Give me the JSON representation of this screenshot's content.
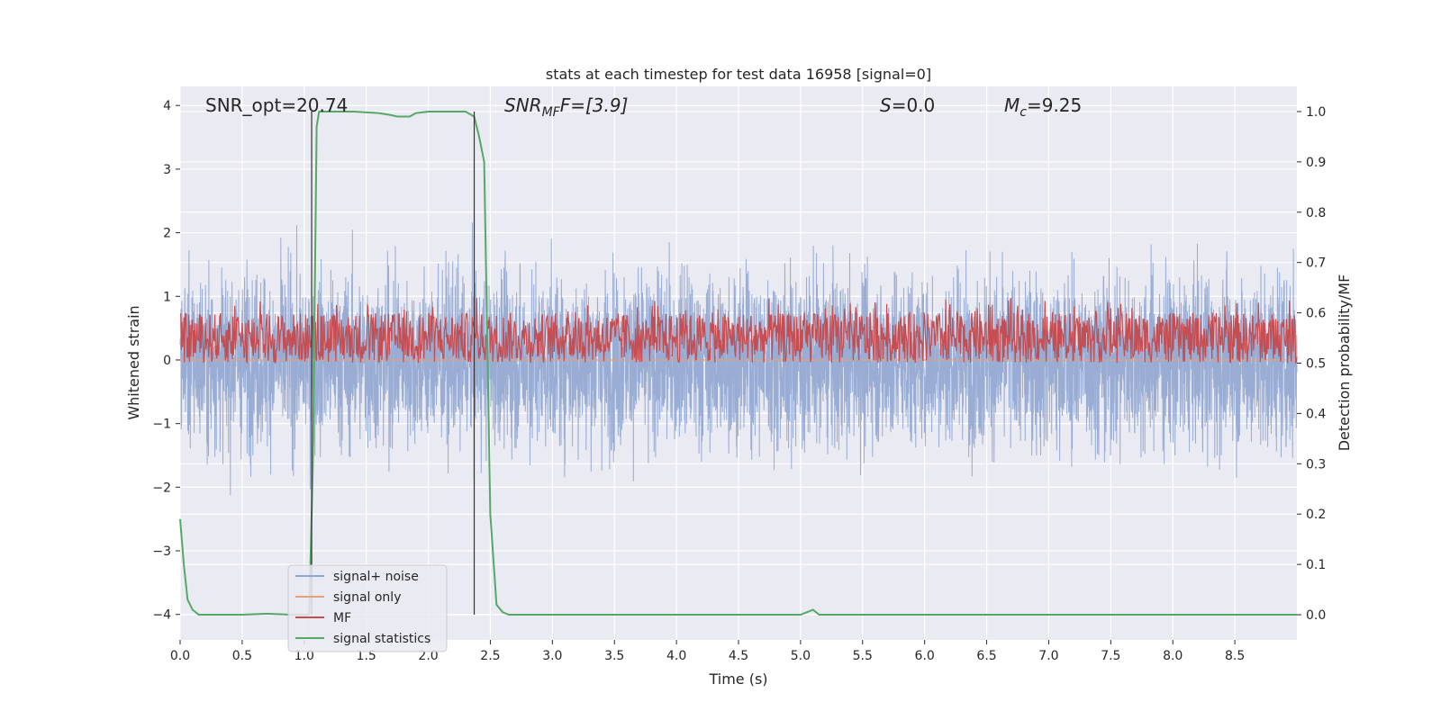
{
  "chart_data": {
    "type": "line",
    "title": "stats at each timestep for test data 16958 [signal=0]",
    "xlabel": "Time (s)",
    "ylabel": "Whitened strain",
    "y2label": "Detection probability/MF",
    "xlim": [
      0,
      9.0
    ],
    "ylim": [
      -4.4,
      4.3
    ],
    "y2lim": [
      -0.05,
      1.05
    ],
    "xticks": [
      0.0,
      0.5,
      1.0,
      1.5,
      2.0,
      2.5,
      3.0,
      3.5,
      4.0,
      4.5,
      5.0,
      5.5,
      6.0,
      6.5,
      7.0,
      7.5,
      8.0,
      8.5
    ],
    "xtick_labels": [
      "0.0",
      "0.5",
      "1.0",
      "1.5",
      "2.0",
      "2.5",
      "3.0",
      "3.5",
      "4.0",
      "4.5",
      "5.0",
      "5.5",
      "6.0",
      "6.5",
      "7.0",
      "7.5",
      "8.0",
      "8.5"
    ],
    "yticks": [
      4,
      3,
      2,
      1,
      0,
      -1,
      -2,
      -3,
      -4
    ],
    "ytick_labels": [
      "4",
      "3",
      "2",
      "1",
      "0",
      "−1",
      "−2",
      "−3",
      "−4"
    ],
    "y2ticks": [
      1.0,
      0.9,
      0.8,
      0.7,
      0.6,
      0.5,
      0.4,
      0.3,
      0.2,
      0.1,
      0.0
    ],
    "y2tick_labels": [
      "1.0",
      "0.9",
      "0.8",
      "0.7",
      "0.6",
      "0.5",
      "0.4",
      "0.3",
      "0.2",
      "0.1",
      "0.0"
    ],
    "grid": true,
    "legend_position": "lower-left",
    "annotations": {
      "snr_opt": "SNR_opt=20.74",
      "snr_mf_base": "SNR",
      "snr_mf_sub": "MF",
      "snr_mf_value": "F=[3.9]",
      "s_label": "S",
      "s_value": "=0.0",
      "mc_base": "M",
      "mc_sub": "c",
      "mc_value": "=9.25"
    },
    "vlines": [
      1.06,
      2.37
    ],
    "series": [
      {
        "name": "signal+ noise",
        "color": "#8fa5d0",
        "axis": "left",
        "kind": "noise",
        "amplitude_envelope": {
          "upper_max": 3.9,
          "lower_min": -4.0,
          "typical_upper": 2.2,
          "typical_lower": -2.2
        },
        "points_per_second": 200
      },
      {
        "name": "signal only",
        "color": "#e8a07a",
        "axis": "left",
        "kind": "flat",
        "value": 0
      },
      {
        "name": "MF",
        "color": "#c44e52",
        "axis": "right",
        "kind": "band",
        "band": {
          "low": 0.5,
          "high": 0.6,
          "max": 0.63
        }
      },
      {
        "name": "signal statistics",
        "color": "#55a868",
        "axis": "right",
        "kind": "line",
        "x": [
          0.0,
          0.03,
          0.06,
          0.1,
          0.15,
          0.2,
          0.3,
          0.5,
          0.7,
          0.9,
          1.0,
          1.04,
          1.07,
          1.1,
          1.12,
          1.2,
          1.4,
          1.6,
          1.7,
          1.75,
          1.8,
          1.85,
          1.9,
          2.0,
          2.1,
          2.3,
          2.37,
          2.41,
          2.45,
          2.5,
          2.55,
          2.6,
          2.65,
          2.7,
          3.0,
          4.0,
          5.0,
          5.05,
          5.1,
          5.15,
          5.2,
          5.3,
          6.0,
          7.0,
          8.0,
          9.0
        ],
        "y": [
          0.19,
          0.1,
          0.03,
          0.01,
          0.0,
          0.0,
          0.0,
          0.0,
          0.002,
          0.0,
          0.0,
          0.0,
          0.3,
          0.97,
          1.0,
          1.0,
          1.0,
          0.997,
          0.993,
          0.99,
          0.99,
          0.99,
          0.997,
          1.0,
          1.0,
          1.0,
          0.99,
          0.95,
          0.9,
          0.2,
          0.02,
          0.005,
          0.0,
          0.0,
          0.0,
          0.0,
          0.0,
          0.005,
          0.01,
          0.0,
          0.0,
          0.0,
          0.0,
          0.0,
          0.0,
          0.0
        ]
      }
    ]
  }
}
